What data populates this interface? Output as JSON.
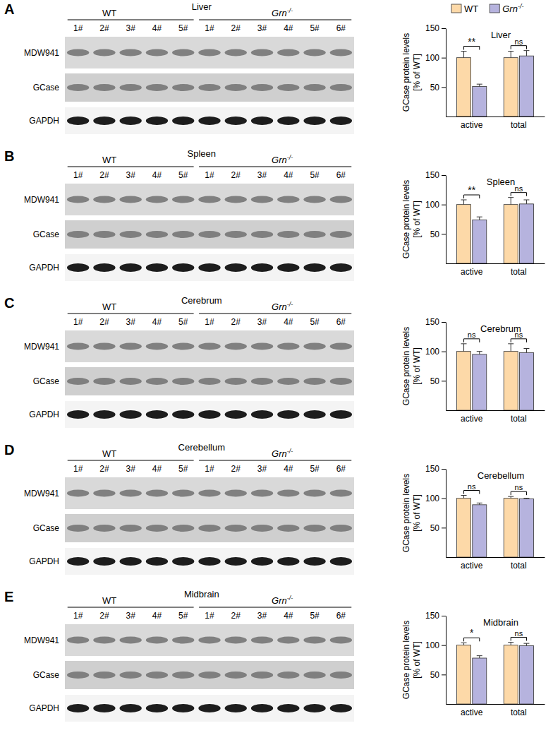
{
  "chart_data": [
    {
      "type": "bar",
      "title": "Liver",
      "y_label": [
        "GCase protein levels",
        "[% of WT]"
      ],
      "categories": [
        "active",
        "total"
      ],
      "series": [
        {
          "name": "WT",
          "color": "#fdd9a8",
          "values": [
            100,
            100
          ],
          "errors": [
            11,
            11
          ]
        },
        {
          "name": "Grn-/-",
          "color": "#b6b3de",
          "values": [
            51,
            103
          ],
          "errors": [
            4,
            9
          ]
        }
      ],
      "significance": [
        "**",
        "ns"
      ],
      "ylim": [
        0,
        150
      ],
      "yticks": [
        50,
        100,
        150
      ],
      "legend": "top-right"
    },
    {
      "type": "bar",
      "title": "Spleen",
      "y_label": [
        "GCase protein levels",
        "[% of WT]"
      ],
      "categories": [
        "active",
        "total"
      ],
      "series": [
        {
          "color": "#fdd9a8",
          "values": [
            100,
            100
          ],
          "errors": [
            8,
            12
          ]
        },
        {
          "color": "#b6b3de",
          "values": [
            74,
            101
          ],
          "errors": [
            5,
            7
          ]
        }
      ],
      "significance": [
        "**",
        "ns"
      ],
      "ylim": [
        0,
        150
      ],
      "yticks": [
        50,
        100,
        150
      ]
    },
    {
      "type": "bar",
      "title": "Cerebrum",
      "y_label": [
        "GCase protein levels",
        "[% of WT]"
      ],
      "categories": [
        "active",
        "total"
      ],
      "series": [
        {
          "color": "#fdd9a8",
          "values": [
            100,
            100
          ],
          "errors": [
            13,
            13
          ]
        },
        {
          "color": "#b6b3de",
          "values": [
            95,
            98
          ],
          "errors": [
            5,
            7
          ]
        }
      ],
      "significance": [
        "ns",
        "ns"
      ],
      "ylim": [
        0,
        150
      ],
      "yticks": [
        50,
        100,
        150
      ]
    },
    {
      "type": "bar",
      "title": "Cerebellum",
      "y_label": [
        "GCase protein levels",
        "[% of WT]"
      ],
      "categories": [
        "active",
        "total"
      ],
      "series": [
        {
          "color": "#fdd9a8",
          "values": [
            100,
            100
          ],
          "errors": [
            5,
            3
          ]
        },
        {
          "color": "#b6b3de",
          "values": [
            89,
            99
          ],
          "errors": [
            3,
            1
          ]
        }
      ],
      "significance": [
        "ns",
        "ns"
      ],
      "ylim": [
        0,
        150
      ],
      "yticks": [
        50,
        100,
        150
      ]
    },
    {
      "type": "bar",
      "title": "Midbrain",
      "y_label": [
        "GCase protein levels",
        "[% of WT]"
      ],
      "categories": [
        "active",
        "total"
      ],
      "series": [
        {
          "color": "#fdd9a8",
          "values": [
            100,
            100
          ],
          "errors": [
            4,
            5
          ]
        },
        {
          "color": "#b6b3de",
          "values": [
            78,
            99
          ],
          "errors": [
            4,
            4
          ]
        }
      ],
      "significance": [
        "*",
        "ns"
      ],
      "ylim": [
        0,
        150
      ],
      "yticks": [
        50,
        100,
        150
      ]
    }
  ],
  "blots": [
    {
      "panel": "A",
      "title": "Liver",
      "rows": [
        "MDW941",
        "GCase",
        "GAPDH"
      ],
      "groups": [
        {
          "label": "WT",
          "lanes": [
            "1#",
            "2#",
            "3#",
            "4#",
            "5#"
          ]
        },
        {
          "label": "Grn-/-",
          "lanes": [
            "1#",
            "2#",
            "3#",
            "4#",
            "5#",
            "6#"
          ]
        }
      ]
    },
    {
      "panel": "B",
      "title": "Spleen",
      "rows": [
        "MDW941",
        "GCase",
        "GAPDH"
      ],
      "groups": [
        {
          "label": "WT",
          "lanes": [
            "1#",
            "2#",
            "3#",
            "4#",
            "5#"
          ]
        },
        {
          "label": "Grn-/-",
          "lanes": [
            "1#",
            "2#",
            "3#",
            "4#",
            "5#",
            "6#"
          ]
        }
      ]
    },
    {
      "panel": "C",
      "title": "Cerebrum",
      "rows": [
        "MDW941",
        "GCase",
        "GAPDH"
      ],
      "groups": [
        {
          "label": "WT",
          "lanes": [
            "1#",
            "2#",
            "3#",
            "4#",
            "5#"
          ]
        },
        {
          "label": "Grn-/-",
          "lanes": [
            "1#",
            "2#",
            "3#",
            "4#",
            "5#",
            "6#"
          ]
        }
      ]
    },
    {
      "panel": "D",
      "title": "Cerebellum",
      "rows": [
        "MDW941",
        "GCase",
        "GAPDH"
      ],
      "groups": [
        {
          "label": "WT",
          "lanes": [
            "1#",
            "2#",
            "3#",
            "4#",
            "5#"
          ]
        },
        {
          "label": "Grn-/-",
          "lanes": [
            "1#",
            "2#",
            "3#",
            "4#",
            "5#",
            "6#"
          ]
        }
      ]
    },
    {
      "panel": "E",
      "title": "Midbrain",
      "rows": [
        "MDW941",
        "GCase",
        "GAPDH"
      ],
      "groups": [
        {
          "label": "WT",
          "lanes": [
            "1#",
            "2#",
            "3#",
            "4#",
            "5#"
          ]
        },
        {
          "label": "Grn-/-",
          "lanes": [
            "1#",
            "2#",
            "3#",
            "4#",
            "5#",
            "6#"
          ]
        }
      ]
    }
  ]
}
